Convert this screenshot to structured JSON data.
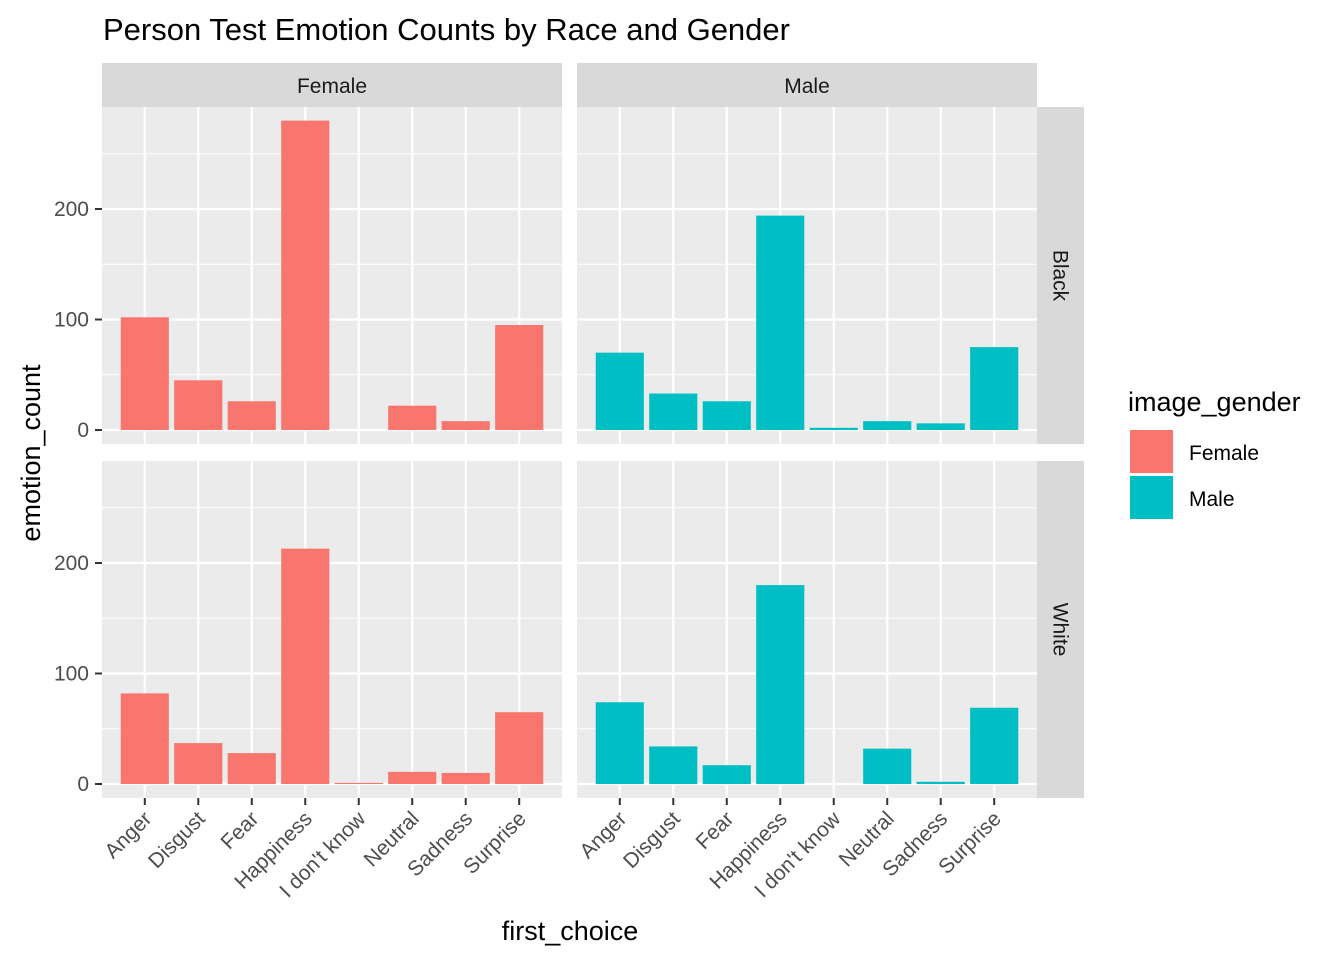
{
  "chart_data": {
    "type": "bar",
    "title": "Person Test Emotion Counts by Race and Gender",
    "xlabel": "first_choice",
    "ylabel": "emotion_count",
    "categories": [
      "Anger",
      "Disgust",
      "Fear",
      "Happiness",
      "I don't know",
      "Neutral",
      "Sadness",
      "Surprise"
    ],
    "y_ticks": [
      0,
      100,
      200
    ],
    "ylim": [
      0,
      290
    ],
    "grid": true,
    "facet_columns": [
      "Female",
      "Male"
    ],
    "facet_rows": [
      "Black",
      "White"
    ],
    "legend": {
      "title": "image_gender",
      "position": "right",
      "entries": [
        {
          "name": "Female",
          "color": "#F8766D"
        },
        {
          "name": "Male",
          "color": "#00BFC4"
        }
      ]
    },
    "panels": [
      {
        "col": "Female",
        "row": "Black",
        "fill": "Female",
        "values": [
          102,
          45,
          26,
          280,
          0,
          22,
          8,
          95
        ]
      },
      {
        "col": "Male",
        "row": "Black",
        "fill": "Male",
        "values": [
          70,
          33,
          26,
          194,
          2,
          8,
          6,
          75
        ]
      },
      {
        "col": "Female",
        "row": "White",
        "fill": "Female",
        "values": [
          82,
          37,
          28,
          213,
          1,
          11,
          10,
          65
        ]
      },
      {
        "col": "Male",
        "row": "White",
        "fill": "Male",
        "values": [
          74,
          34,
          17,
          180,
          0,
          32,
          2,
          69
        ]
      }
    ]
  }
}
